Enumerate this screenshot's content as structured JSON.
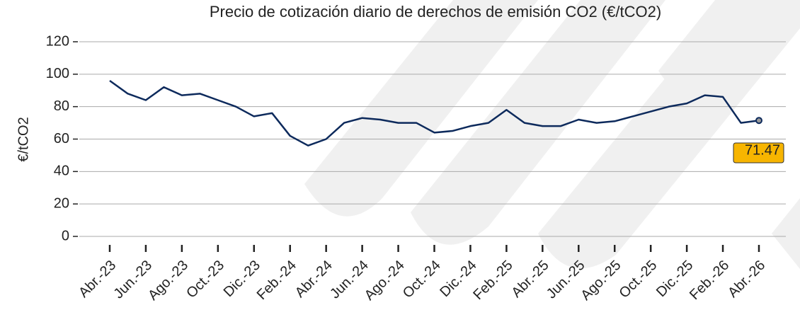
{
  "chart_data": {
    "type": "line",
    "title": "Precio de cotización diario de derechos de emisión CO2 (€/tCO2)",
    "y_label": "€/tCO2",
    "categories": [
      "Abr.-23",
      null,
      "Jun.-23",
      null,
      "Ago.-23",
      null,
      "Oct.-23",
      null,
      "Dic.-23",
      null,
      "Feb.-24",
      null,
      "Abr.-24",
      null,
      "Jun.-24",
      null,
      "Ago.-24",
      null,
      "Oct.-24",
      null,
      "Dic.-24",
      null,
      "Feb.-25",
      null,
      "Abr.-25",
      null,
      "Jun.-25",
      null,
      "Ago.-25",
      null,
      "Oct.-25",
      null,
      "Dic.-25",
      null,
      "Feb.-26",
      null,
      "Abr.-26"
    ],
    "values": [
      96,
      88,
      84,
      92,
      87,
      88,
      84,
      80,
      74,
      76,
      62,
      56,
      60,
      70,
      73,
      72,
      70,
      70,
      64,
      65,
      68,
      70,
      78,
      70,
      68,
      68,
      72,
      70,
      71,
      74,
      77,
      80,
      82,
      87,
      86,
      70,
      71.47
    ],
    "color": "#0d2a5c",
    "highlight_color": "#f7b500",
    "ylim": [
      0,
      120
    ],
    "yticks": [
      0,
      20,
      40,
      60,
      80,
      100,
      120
    ],
    "grid": true
  }
}
